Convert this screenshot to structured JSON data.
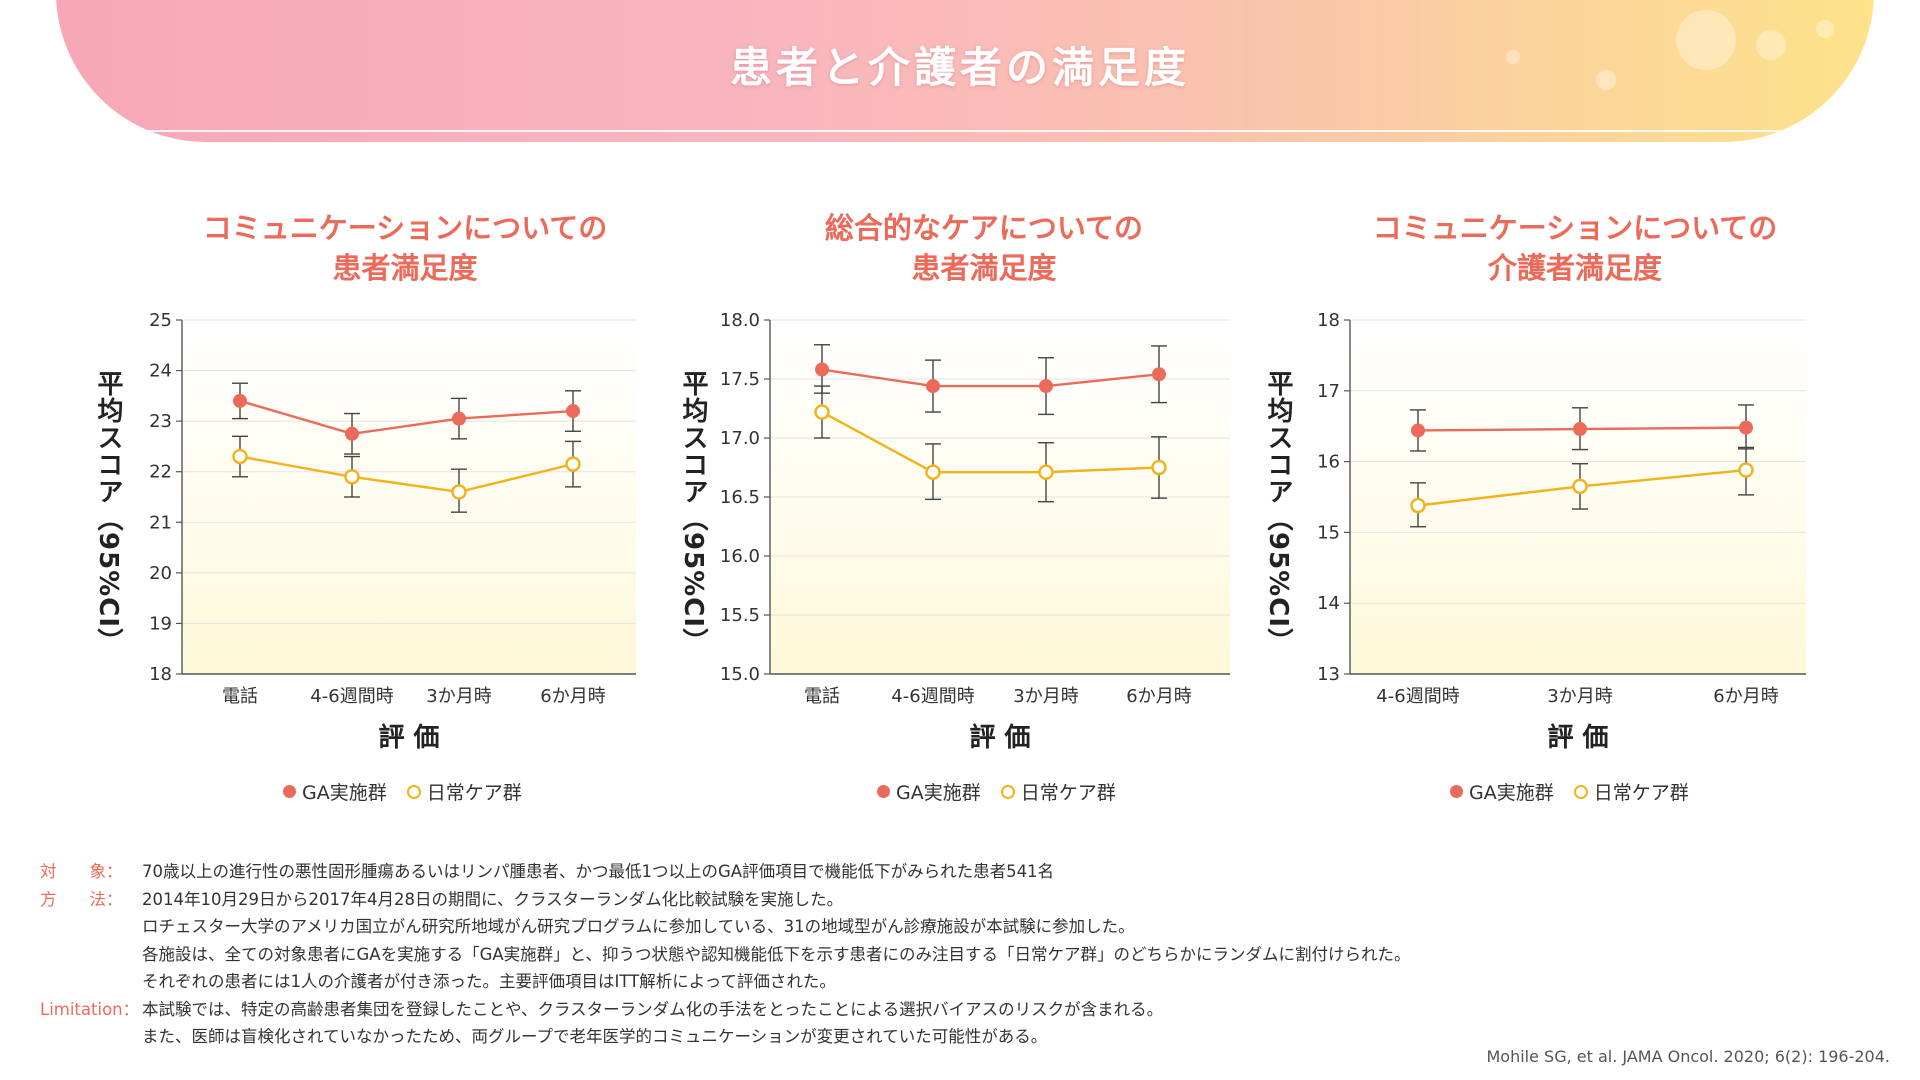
{
  "header": {
    "title": "患者と介護者の満足度"
  },
  "charts": [
    {
      "title_line1": "コミュニケーションについての",
      "title_line2": "患者満足度"
    },
    {
      "title_line1": "総合的なケアについての",
      "title_line2": "患者満足度"
    },
    {
      "title_line1": "コミュニケーションについての",
      "title_line2": "介護者満足度"
    }
  ],
  "legend": {
    "ga": "GA実施群",
    "usual": "日常ケア群"
  },
  "colors": {
    "ga": "#ec6a5a",
    "usual": "#f1b21a",
    "accent": "#ec6a5a"
  },
  "chart_data": [
    {
      "type": "line",
      "title": "コミュニケーションについての患者満足度",
      "xlabel": "評 価",
      "ylabel": "平均スコア（95%CI）",
      "categories": [
        "電話",
        "4-6週間時",
        "3か月時",
        "6か月時"
      ],
      "ylim": [
        18,
        25
      ],
      "yticks": [
        18,
        19,
        20,
        21,
        22,
        23,
        24,
        25
      ],
      "legend": "bottom",
      "series": [
        {
          "name": "GA実施群",
          "values": [
            23.4,
            22.75,
            23.05,
            23.2
          ],
          "err_low": [
            23.05,
            22.35,
            22.65,
            22.8
          ],
          "err_high": [
            23.75,
            23.15,
            23.45,
            23.6
          ]
        },
        {
          "name": "日常ケア群",
          "values": [
            22.3,
            21.9,
            21.6,
            22.15
          ],
          "err_low": [
            21.9,
            21.5,
            21.2,
            21.7
          ],
          "err_high": [
            22.7,
            22.3,
            22.05,
            22.6
          ]
        }
      ]
    },
    {
      "type": "line",
      "title": "総合的なケアについての患者満足度",
      "xlabel": "評 価",
      "ylabel": "平均スコア（95%CI）",
      "categories": [
        "電話",
        "4-6週間時",
        "3か月時",
        "6か月時"
      ],
      "ylim": [
        15.0,
        18.0
      ],
      "yticks": [
        "15.0",
        "15.5",
        "16.0",
        "16.5",
        "17.0",
        "17.5",
        "18.0"
      ],
      "legend": "bottom",
      "series": [
        {
          "name": "GA実施群",
          "values": [
            17.58,
            17.44,
            17.44,
            17.54
          ],
          "err_low": [
            17.38,
            17.22,
            17.2,
            17.3
          ],
          "err_high": [
            17.79,
            17.66,
            17.68,
            17.78
          ]
        },
        {
          "name": "日常ケア群",
          "values": [
            17.22,
            16.71,
            16.71,
            16.75
          ],
          "err_low": [
            17.0,
            16.48,
            16.46,
            16.49
          ],
          "err_high": [
            17.44,
            16.95,
            16.96,
            17.01
          ]
        }
      ]
    },
    {
      "type": "line",
      "title": "コミュニケーションについての介護者満足度",
      "xlabel": "評 価",
      "ylabel": "平均スコア（95%CI）",
      "categories": [
        "4-6週間時",
        "3か月時",
        "6か月時"
      ],
      "ylim": [
        13,
        18
      ],
      "yticks": [
        13,
        14,
        15,
        16,
        17,
        18
      ],
      "legend": "bottom",
      "series": [
        {
          "name": "GA実施群",
          "values": [
            16.44,
            16.46,
            16.48
          ],
          "err_low": [
            16.15,
            16.17,
            16.18
          ],
          "err_high": [
            16.73,
            16.76,
            16.8
          ]
        },
        {
          "name": "日常ケア群",
          "values": [
            15.38,
            15.65,
            15.88
          ],
          "err_low": [
            15.08,
            15.33,
            15.53
          ],
          "err_high": [
            15.7,
            15.97,
            16.2
          ]
        }
      ]
    }
  ],
  "notes": {
    "target_label": "対　　象：",
    "target_text": "70歳以上の進行性の悪性固形腫瘍あるいはリンパ腫患者、かつ最低1つ以上のGA評価項目で機能低下がみられた患者541名",
    "method_label": "方　　法：",
    "method_lines": [
      "2014年10月29日から2017年4月28日の期間に、クラスターランダム化比較試験を実施した。",
      "ロチェスター大学のアメリカ国立がん研究所地域がん研究プログラムに参加している、31の地域型がん診療施設が本試験に参加した。",
      "各施設は、全ての対象患者にGAを実施する「GA実施群」と、抑うつ状態や認知機能低下を示す患者にのみ注目する「日常ケア群」のどちらかにランダムに割付けられた。",
      "それぞれの患者には1人の介護者が付き添った。主要評価項目はITT解析によって評価された。"
    ],
    "limitation_label": "Limitation：",
    "limitation_lines": [
      "本試験では、特定の高齢患者集団を登録したことや、クラスターランダム化の手法をとったことによる選択バイアスのリスクが含まれる。",
      "また、医師は盲検化されていなかったため、両グループで老年医学的コミュニケーションが変更されていた可能性がある。"
    ]
  },
  "citation": "Mohile SG, et al. JAMA Oncol. 2020; 6(2): 196-204."
}
